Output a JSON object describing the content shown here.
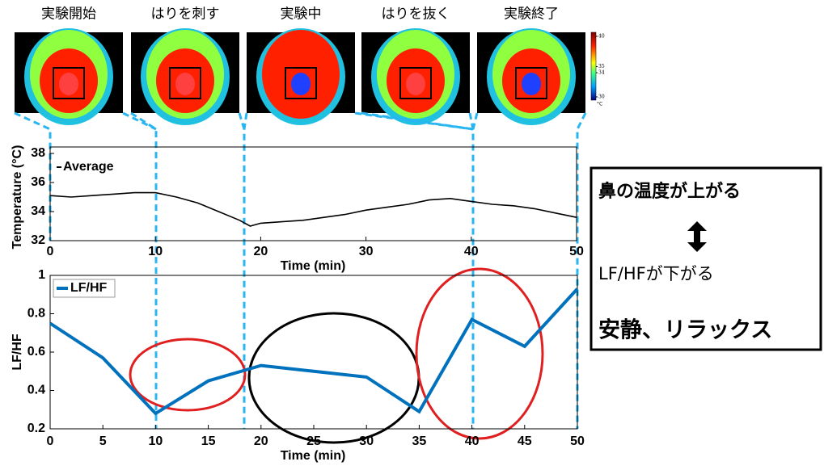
{
  "images": {
    "labels": [
      "実験開始",
      "はりを刺す",
      "実験中",
      "はりを抜く",
      "実験終了"
    ],
    "colorbar": {
      "ticks": [
        40,
        35,
        34,
        30
      ],
      "unit": "°C",
      "clim": [
        30,
        40
      ]
    }
  },
  "chart_data": [
    {
      "type": "line",
      "ylabel": "Temperature (°C)",
      "xlabel": "Time (min)",
      "x": [
        0,
        2,
        4,
        6,
        8,
        10,
        12,
        14,
        16,
        18,
        19,
        20,
        22,
        24,
        26,
        28,
        30,
        32,
        34,
        36,
        38,
        40,
        42,
        44,
        46,
        48,
        50
      ],
      "series": [
        {
          "name": "Average",
          "color": "#000000",
          "values": [
            35.1,
            35.0,
            35.1,
            35.2,
            35.3,
            35.3,
            35.0,
            34.6,
            34.0,
            33.4,
            33.0,
            33.2,
            33.3,
            33.4,
            33.6,
            33.8,
            34.1,
            34.3,
            34.5,
            34.8,
            34.9,
            34.7,
            34.5,
            34.4,
            34.2,
            33.9,
            33.6
          ]
        }
      ],
      "xlim": [
        0,
        50
      ],
      "xticks": [
        0,
        10,
        20,
        30,
        40,
        50
      ],
      "ylim": [
        32,
        38
      ],
      "yticks": [
        32,
        34,
        36,
        38
      ],
      "legend": "upper left"
    },
    {
      "type": "line",
      "ylabel": "LF/HF",
      "xlabel": "Time (min)",
      "x": [
        0,
        5,
        10,
        15,
        20,
        25,
        30,
        35,
        40,
        45,
        50
      ],
      "series": [
        {
          "name": "LF/HF",
          "color": "#0072bd",
          "values": [
            0.75,
            0.57,
            0.28,
            0.45,
            0.53,
            0.5,
            0.47,
            0.29,
            0.77,
            0.63,
            0.93
          ]
        }
      ],
      "xlim": [
        0,
        50
      ],
      "xticks": [
        0,
        5,
        10,
        15,
        20,
        25,
        30,
        35,
        40,
        45,
        50
      ],
      "ylim": [
        0.2,
        1
      ],
      "yticks": [
        0.2,
        0.4,
        0.6,
        0.8,
        1
      ],
      "legend": "upper left"
    }
  ],
  "callout": {
    "lines": [
      "鼻の温度が上がる",
      "LF/HFが下がる",
      "安静、リラックス"
    ]
  }
}
